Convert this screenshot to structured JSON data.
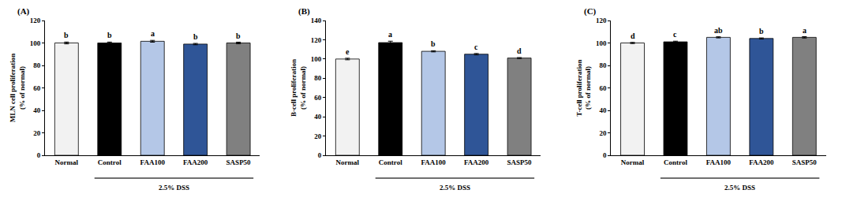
{
  "chart_data": [
    {
      "type": "bar",
      "title": "(A)",
      "y_label": "MLN cell proliferation\n(% of normal)",
      "categories": [
        "Normal",
        "Control",
        "FAA100",
        "FAA200",
        "SASP50"
      ],
      "values": [
        100,
        100,
        101.5,
        99,
        100
      ],
      "errors": [
        0.8,
        0.8,
        0.8,
        0.6,
        0.7
      ],
      "letters": [
        "b",
        "b",
        "a",
        "b",
        "b"
      ],
      "colors": [
        "#f2f2f2",
        "#000000",
        "#b4c7e7",
        "#2f5597",
        "#808080"
      ],
      "group": {
        "label": "2.5% DSS",
        "categories": [
          "Control",
          "FAA100",
          "FAA200",
          "SASP50"
        ]
      },
      "ylim": [
        0,
        120
      ],
      "yticks": [
        0,
        20,
        40,
        60,
        80,
        100,
        120
      ],
      "grid": false
    },
    {
      "type": "bar",
      "title": "(B)",
      "y_label": "B-cell proliferation\n(% of normal)",
      "categories": [
        "Normal",
        "Control",
        "FAA100",
        "FAA200",
        "SASP50"
      ],
      "values": [
        100,
        117,
        108,
        105,
        101
      ],
      "errors": [
        0.8,
        1.5,
        0.6,
        0.7,
        0.5
      ],
      "letters": [
        "e",
        "a",
        "b",
        "c",
        "d"
      ],
      "colors": [
        "#f2f2f2",
        "#000000",
        "#b4c7e7",
        "#2f5597",
        "#808080"
      ],
      "group": {
        "label": "2.5% DSS",
        "categories": [
          "Control",
          "FAA100",
          "FAA200",
          "SASP50"
        ]
      },
      "ylim": [
        0,
        140
      ],
      "yticks": [
        0,
        20,
        40,
        60,
        80,
        100,
        120,
        140
      ],
      "grid": false
    },
    {
      "type": "bar",
      "title": "(C)",
      "y_label": "T-cell proliferation\n(% of normal)",
      "categories": [
        "Normal",
        "Control",
        "FAA100",
        "FAA200",
        "SASP50"
      ],
      "values": [
        100,
        101,
        105,
        104,
        105
      ],
      "errors": [
        0.5,
        0.6,
        0.5,
        0.5,
        0.6
      ],
      "letters": [
        "d",
        "c",
        "ab",
        "b",
        "a"
      ],
      "colors": [
        "#f2f2f2",
        "#000000",
        "#b4c7e7",
        "#2f5597",
        "#808080"
      ],
      "group": {
        "label": "2.5% DSS",
        "categories": [
          "Control",
          "FAA100",
          "FAA200",
          "SASP50"
        ]
      },
      "ylim": [
        0,
        120
      ],
      "yticks": [
        0,
        20,
        40,
        60,
        80,
        100,
        120
      ],
      "grid": false
    }
  ]
}
